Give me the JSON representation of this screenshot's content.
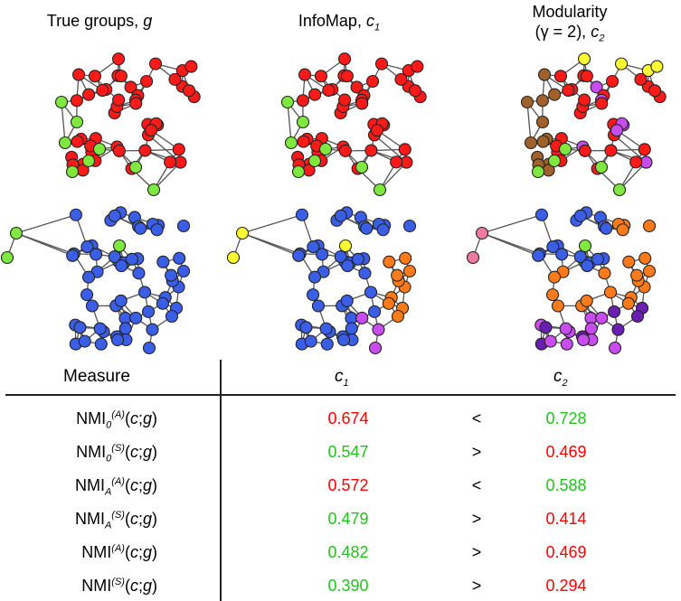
{
  "panels": [
    {
      "title": "True groups, ",
      "var": "g"
    },
    {
      "title": "InfoMap, ",
      "var": "c",
      "sub": "1"
    },
    {
      "title_line1": "Modularity",
      "title_line2": "(γ = 2), ",
      "var": "c",
      "sub": "2"
    }
  ],
  "colors": {
    "red": "#ff1a1a",
    "green": "#7ee83f",
    "blue": "#3a5fe6",
    "yellow": "#ffff33",
    "orange": "#ff7a1a",
    "purple": "#c84cf0",
    "brown": "#a0622a",
    "pink": "#f07aa0",
    "darkpurple": "#6a1fb0",
    "better": "#22c21e",
    "worse": "#ff0000"
  },
  "table": {
    "header": {
      "measure": "Measure",
      "c1": "c",
      "c1_sub": "1",
      "c2": "c",
      "c2_sub": "2"
    },
    "rows": [
      {
        "base": "NMI",
        "sub": "0",
        "sup": "(A)",
        "arg": "(c;g)",
        "v1": "0.674",
        "cmp": "<",
        "v2": "0.728",
        "v1_color": "worse",
        "v2_color": "better"
      },
      {
        "base": "NMI",
        "sub": "0",
        "sup": "(S)",
        "arg": "(c;g)",
        "v1": "0.547",
        "cmp": ">",
        "v2": "0.469",
        "v1_color": "better",
        "v2_color": "worse"
      },
      {
        "base": "NMI",
        "sub": "A",
        "sup": "(A)",
        "arg": "(c;g)",
        "v1": "0.572",
        "cmp": "<",
        "v2": "0.588",
        "v1_color": "worse",
        "v2_color": "better"
      },
      {
        "base": "NMI",
        "sub": "A",
        "sup": "(S)",
        "arg": "(c;g)",
        "v1": "0.479",
        "cmp": ">",
        "v2": "0.414",
        "v1_color": "better",
        "v2_color": "worse"
      },
      {
        "base": "NMI",
        "sub": "",
        "sup": "(A)",
        "arg": "(c;g)",
        "v1": "0.482",
        "cmp": ">",
        "v2": "0.469",
        "v1_color": "better",
        "v2_color": "worse"
      },
      {
        "base": "NMI",
        "sub": "",
        "sup": "(S)",
        "arg": "(c;g)",
        "v1": "0.390",
        "cmp": ">",
        "v2": "0.294",
        "v1_color": "better",
        "v2_color": "worse"
      }
    ]
  }
}
